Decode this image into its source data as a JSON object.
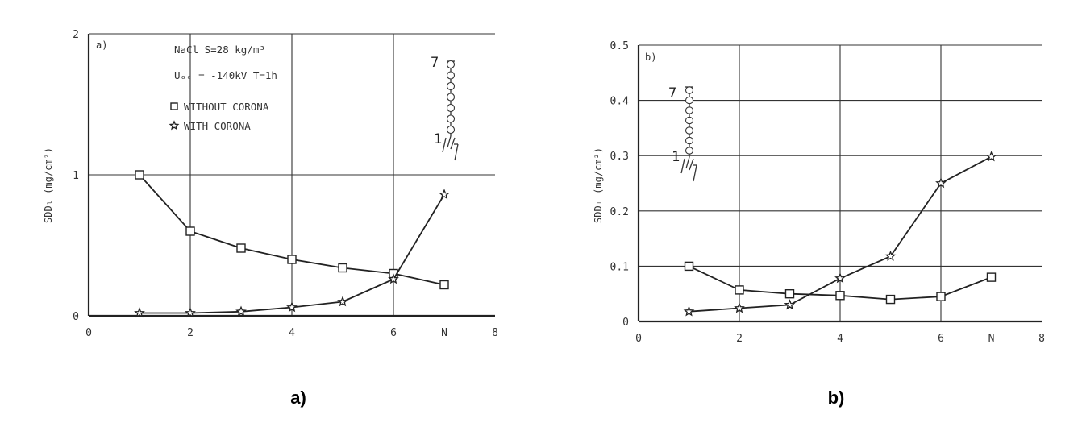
{
  "chart_data": [
    {
      "type": "line",
      "panel_label": "a)",
      "caption": "a)",
      "ylabel": "SDDₗ (mg/cm²)",
      "xlim": [
        0,
        8
      ],
      "ylim": [
        0,
        2
      ],
      "x_tick_labels": [
        "0",
        "2",
        "4",
        "6",
        "N",
        "8"
      ],
      "y_tick_labels": [
        "0",
        "1",
        "2"
      ],
      "annotations": [
        "NaCl  S=28 kg/m³",
        "Uₒₑ = -140kV  T=1h",
        "7",
        "1"
      ],
      "series": [
        {
          "name": "WITHOUT CORONA",
          "marker": "square",
          "x": [
            1,
            2,
            3,
            4,
            5,
            6,
            7
          ],
          "values": [
            1.0,
            0.6,
            0.48,
            0.4,
            0.34,
            0.3,
            0.22
          ]
        },
        {
          "name": "WITH CORONA",
          "marker": "star",
          "x": [
            1,
            2,
            3,
            4,
            5,
            6,
            7
          ],
          "values": [
            0.02,
            0.02,
            0.03,
            0.06,
            0.1,
            0.26,
            0.86
          ]
        }
      ]
    },
    {
      "type": "line",
      "panel_label": "b)",
      "caption": "b)",
      "ylabel": "SDDₗ (mg/cm²)",
      "xlim": [
        0,
        8
      ],
      "ylim": [
        0,
        0.5
      ],
      "x_tick_labels": [
        "0",
        "2",
        "4",
        "6",
        "N",
        "8"
      ],
      "y_tick_labels": [
        "0",
        "0.1",
        "0.2",
        "0.3",
        "0.4",
        "0.5"
      ],
      "annotations": [
        "7",
        "1"
      ],
      "series": [
        {
          "marker": "square",
          "x": [
            1,
            2,
            3,
            4,
            5,
            6,
            7
          ],
          "values": [
            0.1,
            0.057,
            0.05,
            0.047,
            0.04,
            0.045,
            0.08
          ]
        },
        {
          "marker": "star",
          "x": [
            1,
            2,
            3,
            4,
            5,
            6,
            7
          ],
          "values": [
            0.018,
            0.024,
            0.03,
            0.078,
            0.118,
            0.25,
            0.298
          ]
        }
      ]
    }
  ]
}
